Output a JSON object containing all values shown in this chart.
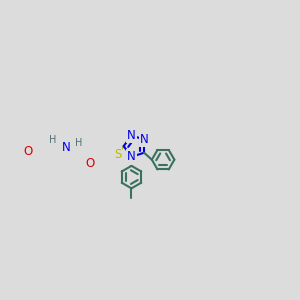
{
  "bg": "#dcdcdc",
  "C": "#3a7060",
  "N": "#0000ee",
  "O": "#dd0000",
  "S": "#bbbb00",
  "H": "#507070",
  "lw": 1.5,
  "dbo": 0.4,
  "fsA": 8.5,
  "fsH": 7.0,
  "xlim": [
    -1,
    17
  ],
  "ylim": [
    -6,
    8
  ]
}
